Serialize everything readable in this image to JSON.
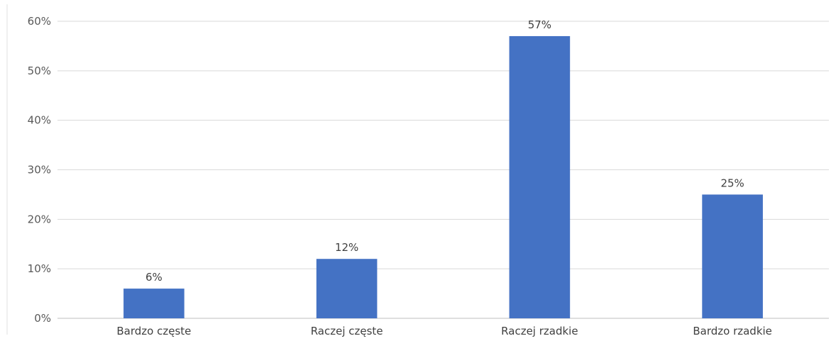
{
  "chart_data": {
    "type": "bar",
    "title": "",
    "xlabel": "",
    "ylabel": "",
    "categories": [
      "Bardzo częste",
      "Raczej częste",
      "Raczej rzadkie",
      "Bardzo rzadkie"
    ],
    "values": [
      6,
      12,
      57,
      25
    ],
    "data_labels": [
      "6%",
      "12%",
      "57%",
      "25%"
    ],
    "ylim": [
      0,
      60
    ],
    "y_ticks": [
      0,
      10,
      20,
      30,
      40,
      50,
      60
    ],
    "y_tick_labels": [
      "0%",
      "10%",
      "20%",
      "30%",
      "40%",
      "50%",
      "60%"
    ],
    "grid": true,
    "legend": "none",
    "colors": {
      "bar": "#4472C4",
      "grid": "#D9D9D9",
      "axis": "#BFBFBF",
      "text": "#404040"
    }
  }
}
